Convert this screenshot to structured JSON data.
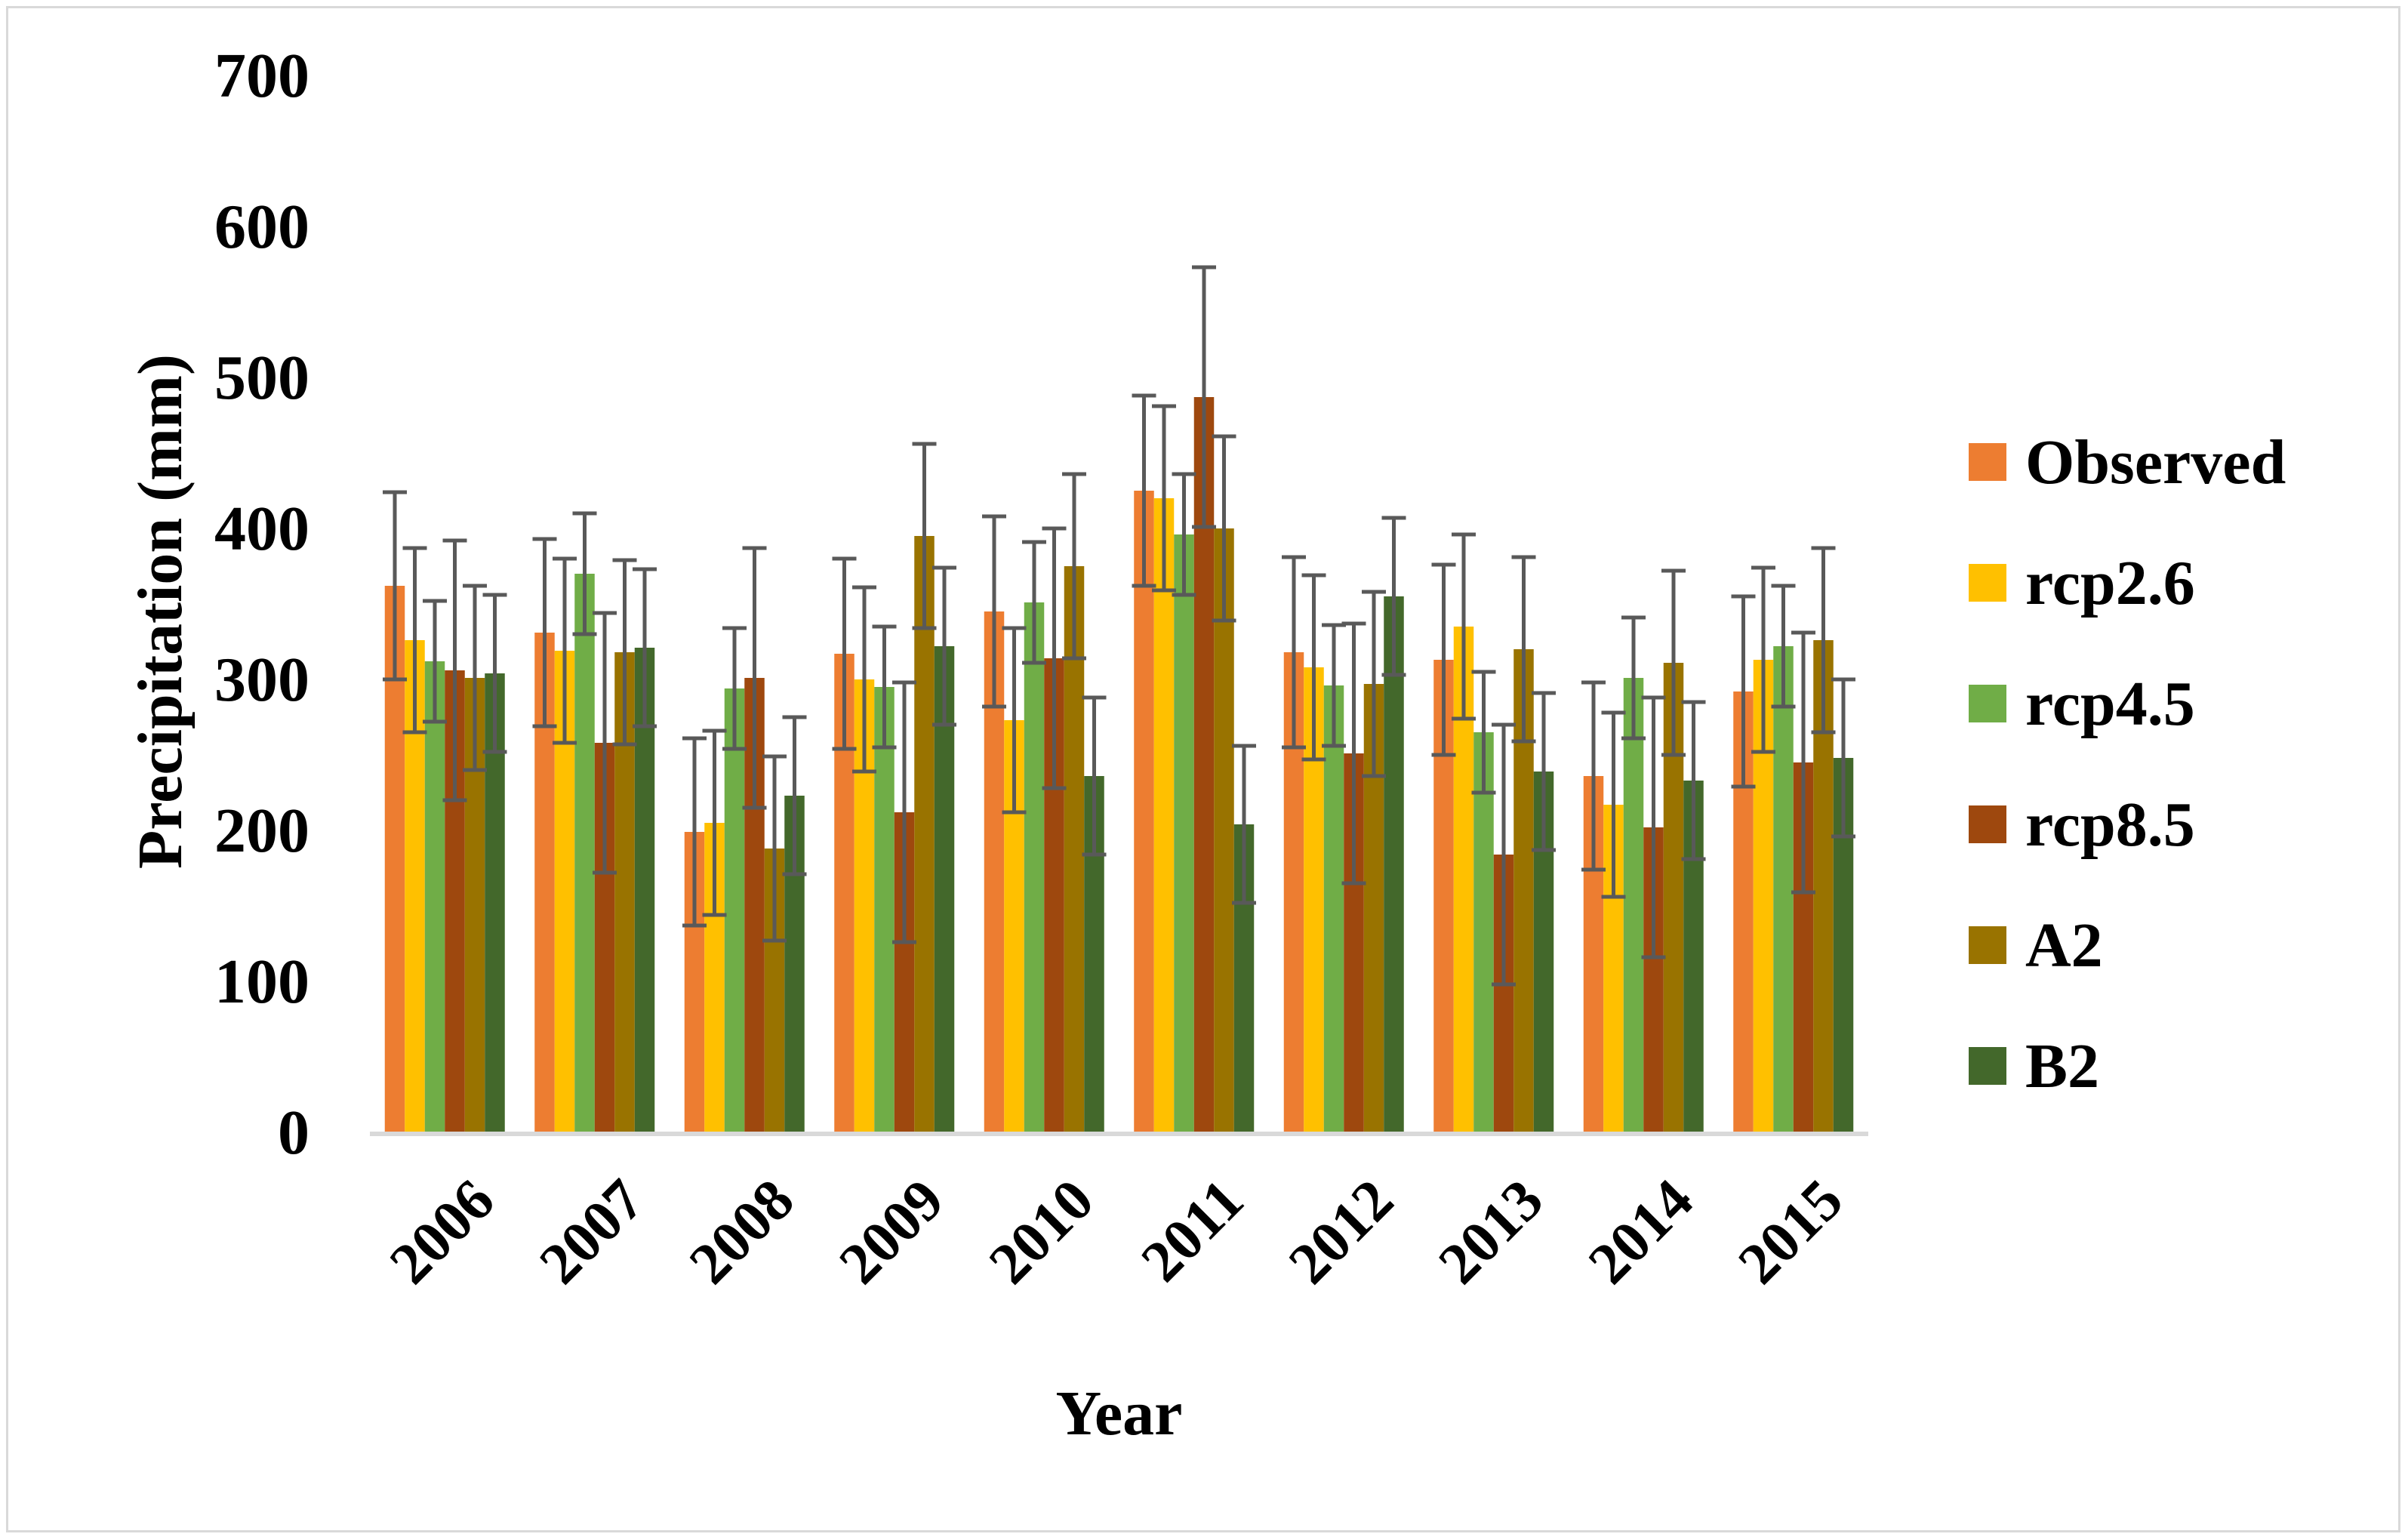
{
  "chart_data": {
    "type": "bar",
    "title": "",
    "xlabel": "Year",
    "ylabel": "Precipitation (mm)",
    "ylim": [
      0,
      700
    ],
    "yticks": [
      0,
      100,
      200,
      300,
      400,
      500,
      600,
      700
    ],
    "grid": false,
    "legend_position": "right",
    "categories": [
      "2006",
      "2007",
      "2008",
      "2009",
      "2010",
      "2011",
      "2012",
      "2013",
      "2014",
      "2015"
    ],
    "series": [
      {
        "name": "Observed",
        "color": "#ED7D31",
        "values": [
          362,
          331,
          199,
          317,
          345,
          425,
          318,
          313,
          236,
          292
        ],
        "errors": [
          62,
          62,
          62,
          63,
          63,
          63,
          63,
          63,
          62,
          63
        ]
      },
      {
        "name": "rcp2.6",
        "color": "#FFC000",
        "values": [
          326,
          319,
          205,
          300,
          273,
          420,
          308,
          335,
          217,
          313
        ],
        "errors": [
          61,
          61,
          61,
          61,
          61,
          61,
          61,
          61,
          61,
          61
        ]
      },
      {
        "name": "rcp4.5",
        "color": "#70AD47",
        "values": [
          312,
          370,
          294,
          295,
          351,
          396,
          296,
          265,
          301,
          322
        ],
        "errors": [
          40,
          40,
          40,
          40,
          40,
          40,
          40,
          40,
          40,
          40
        ]
      },
      {
        "name": "rcp8.5",
        "color": "#9E480E",
        "values": [
          306,
          258,
          301,
          212,
          314,
          487,
          251,
          184,
          202,
          245
        ],
        "errors": [
          86,
          86,
          86,
          86,
          86,
          86,
          86,
          86,
          86,
          86
        ]
      },
      {
        "name": "A2",
        "color": "#997300",
        "values": [
          301,
          318,
          188,
          395,
          375,
          400,
          297,
          320,
          311,
          326
        ],
        "errors": [
          61,
          61,
          61,
          61,
          61,
          61,
          61,
          61,
          61,
          61
        ]
      },
      {
        "name": "B2",
        "color": "#43682B",
        "values": [
          304,
          321,
          223,
          322,
          236,
          204,
          355,
          239,
          233,
          248
        ],
        "errors": [
          52,
          52,
          52,
          52,
          52,
          52,
          52,
          52,
          52,
          52
        ]
      }
    ]
  }
}
